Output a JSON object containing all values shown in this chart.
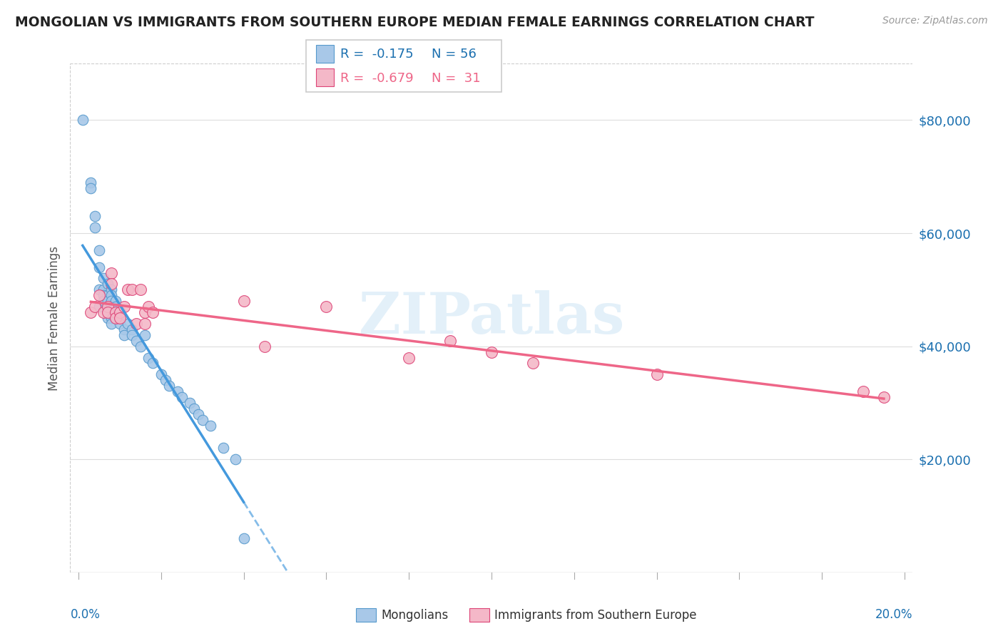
{
  "title": "MONGOLIAN VS IMMIGRANTS FROM SOUTHERN EUROPE MEDIAN FEMALE EARNINGS CORRELATION CHART",
  "source": "Source: ZipAtlas.com",
  "ylabel": "Median Female Earnings",
  "yticks": [
    20000,
    40000,
    60000,
    80000
  ],
  "ytick_labels": [
    "$20,000",
    "$40,000",
    "$60,000",
    "$80,000"
  ],
  "xlim": [
    -0.002,
    0.202
  ],
  "ylim": [
    0,
    90000
  ],
  "legend_label1": "Mongolians",
  "legend_label2": "Immigrants from Southern Europe",
  "watermark": "ZIPatlas",
  "color_blue": "#a8c8e8",
  "color_pink": "#f4b8c8",
  "color_blue_line": "#4499dd",
  "color_pink_line": "#ee6688",
  "color_blue_dark": "#5599cc",
  "color_pink_dark": "#dd4477",
  "mongolian_x": [
    0.001,
    0.003,
    0.003,
    0.004,
    0.004,
    0.005,
    0.005,
    0.005,
    0.005,
    0.006,
    0.006,
    0.006,
    0.006,
    0.007,
    0.007,
    0.007,
    0.007,
    0.007,
    0.007,
    0.008,
    0.008,
    0.008,
    0.008,
    0.008,
    0.008,
    0.008,
    0.009,
    0.009,
    0.009,
    0.009,
    0.01,
    0.01,
    0.01,
    0.011,
    0.011,
    0.012,
    0.013,
    0.013,
    0.014,
    0.015,
    0.016,
    0.017,
    0.018,
    0.02,
    0.021,
    0.022,
    0.024,
    0.025,
    0.027,
    0.028,
    0.029,
    0.03,
    0.032,
    0.035,
    0.038,
    0.04
  ],
  "mongolian_y": [
    80000,
    69000,
    68000,
    63000,
    61000,
    57000,
    54000,
    50000,
    47000,
    52000,
    50000,
    49000,
    48000,
    51000,
    49000,
    48000,
    47000,
    46000,
    45000,
    50000,
    49000,
    48000,
    47000,
    46000,
    45000,
    44000,
    48000,
    47000,
    46000,
    45000,
    46000,
    45000,
    44000,
    43000,
    42000,
    44000,
    43000,
    42000,
    41000,
    40000,
    42000,
    38000,
    37000,
    35000,
    34000,
    33000,
    32000,
    31000,
    30000,
    29000,
    28000,
    27000,
    26000,
    22000,
    20000,
    6000
  ],
  "southern_europe_x": [
    0.003,
    0.004,
    0.005,
    0.006,
    0.007,
    0.007,
    0.008,
    0.008,
    0.009,
    0.009,
    0.01,
    0.01,
    0.011,
    0.012,
    0.013,
    0.014,
    0.015,
    0.016,
    0.016,
    0.017,
    0.018,
    0.04,
    0.045,
    0.06,
    0.08,
    0.09,
    0.1,
    0.11,
    0.14,
    0.19,
    0.195
  ],
  "southern_europe_y": [
    46000,
    47000,
    49000,
    46000,
    47000,
    46000,
    53000,
    51000,
    46000,
    45000,
    46000,
    45000,
    47000,
    50000,
    50000,
    44000,
    50000,
    46000,
    44000,
    47000,
    46000,
    48000,
    40000,
    47000,
    38000,
    41000,
    39000,
    37000,
    35000,
    32000,
    31000
  ]
}
